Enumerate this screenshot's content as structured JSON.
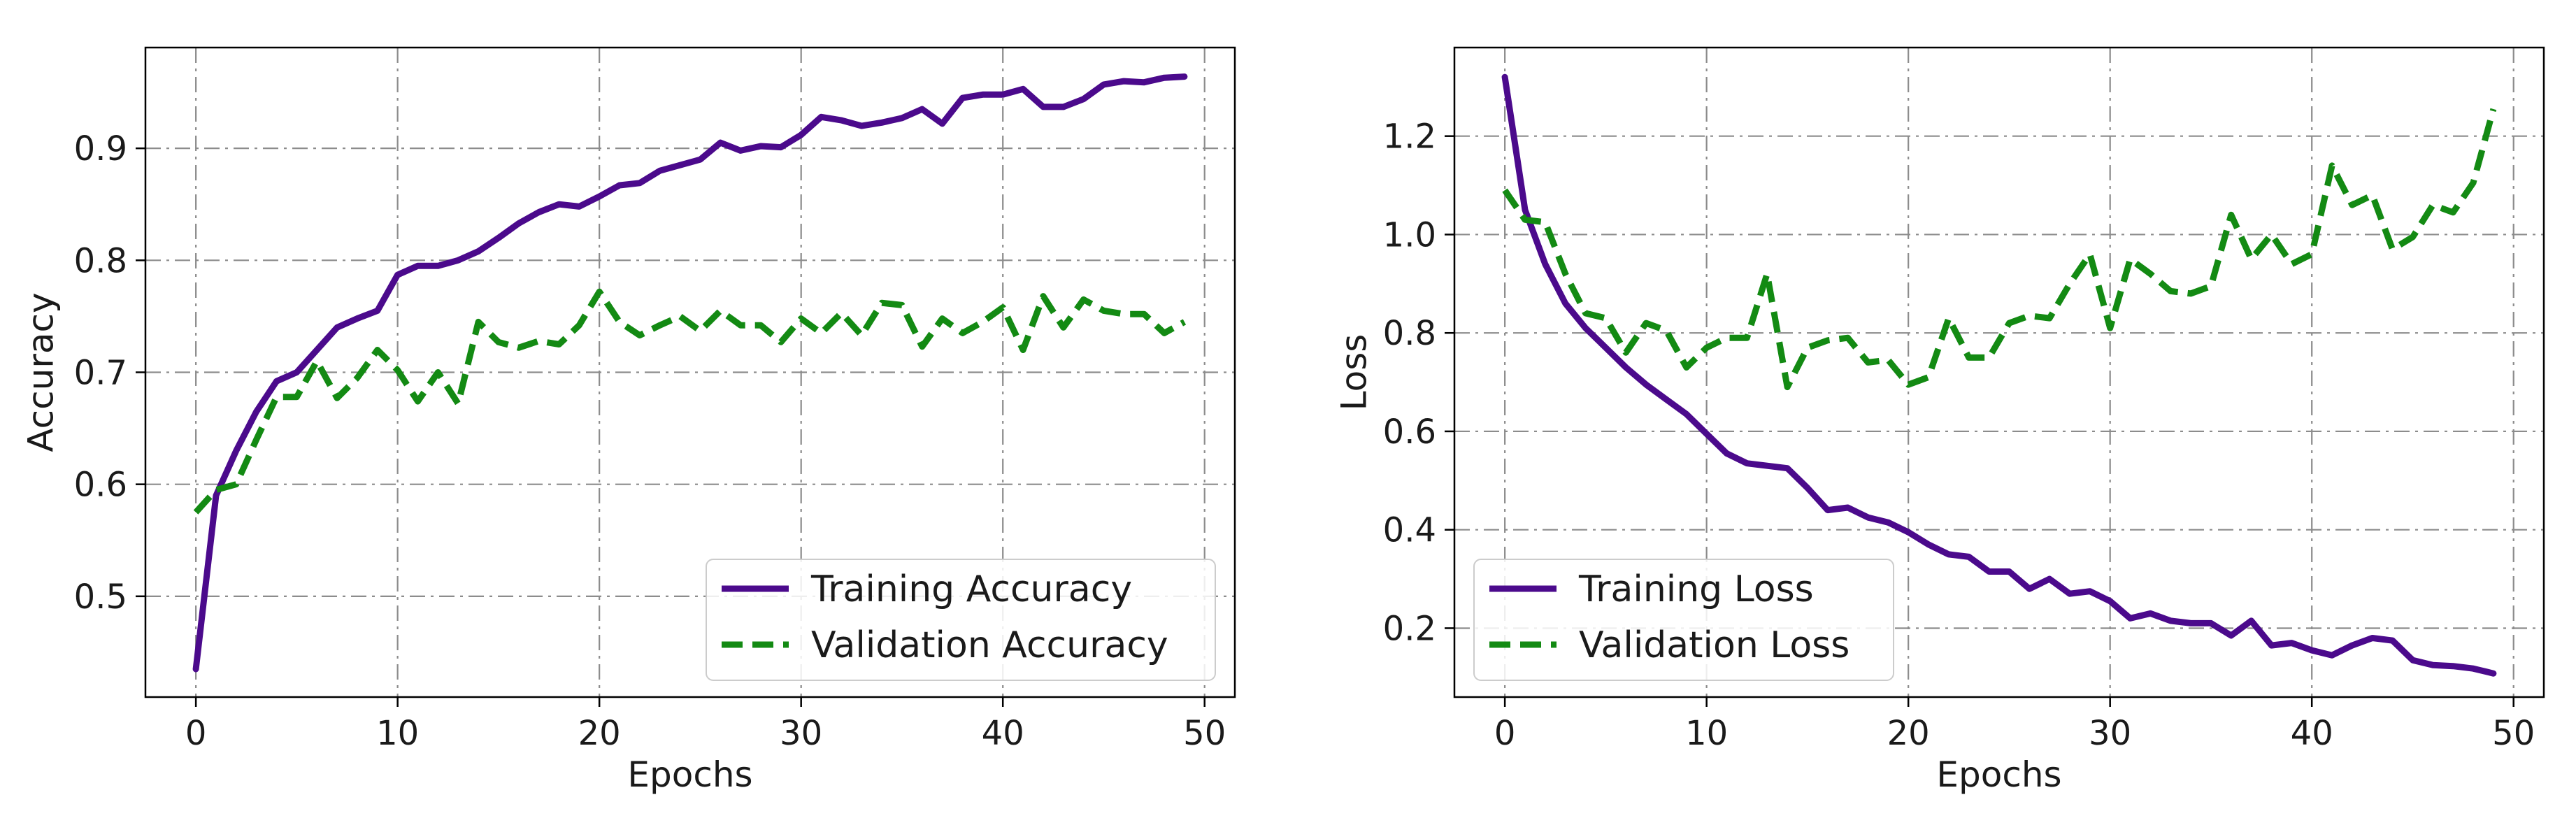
{
  "chart_data": [
    {
      "type": "line",
      "title": "",
      "xlabel": "Epochs",
      "ylabel": "Accuracy",
      "xlim": [
        -2.5,
        51.5
      ],
      "ylim": [
        0.41,
        0.99
      ],
      "xticks": [
        0,
        10,
        20,
        30,
        40,
        50
      ],
      "xtick_labels": [
        "0",
        "10",
        "20",
        "30",
        "40",
        "50"
      ],
      "yticks": [
        0.5,
        0.6,
        0.7,
        0.8,
        0.9
      ],
      "ytick_labels": [
        "0.5",
        "0.6",
        "0.7",
        "0.8",
        "0.9"
      ],
      "grid": true,
      "legend_position": "lower-right",
      "x": [
        0,
        1,
        2,
        3,
        4,
        5,
        6,
        7,
        8,
        9,
        10,
        11,
        12,
        13,
        14,
        15,
        16,
        17,
        18,
        19,
        20,
        21,
        22,
        23,
        24,
        25,
        26,
        27,
        28,
        29,
        30,
        31,
        32,
        33,
        34,
        35,
        36,
        37,
        38,
        39,
        40,
        41,
        42,
        43,
        44,
        45,
        46,
        47,
        48,
        49
      ],
      "series": [
        {
          "name": "Training Accuracy",
          "color": "#4b0a8c",
          "style": "solid",
          "values": [
            0.435,
            0.59,
            0.63,
            0.665,
            0.692,
            0.7,
            0.72,
            0.74,
            0.748,
            0.755,
            0.787,
            0.795,
            0.795,
            0.8,
            0.808,
            0.82,
            0.833,
            0.843,
            0.85,
            0.848,
            0.857,
            0.867,
            0.869,
            0.88,
            0.885,
            0.89,
            0.905,
            0.898,
            0.902,
            0.901,
            0.912,
            0.928,
            0.925,
            0.92,
            0.923,
            0.927,
            0.935,
            0.922,
            0.945,
            0.948,
            0.948,
            0.953,
            0.937,
            0.937,
            0.944,
            0.957,
            0.96,
            0.959,
            0.963,
            0.964
          ]
        },
        {
          "name": "Validation Accuracy",
          "color": "#138a13",
          "style": "dashed",
          "values": [
            0.575,
            0.595,
            0.6,
            0.64,
            0.678,
            0.678,
            0.71,
            0.677,
            0.695,
            0.72,
            0.702,
            0.674,
            0.7,
            0.672,
            0.745,
            0.727,
            0.722,
            0.728,
            0.725,
            0.742,
            0.772,
            0.745,
            0.733,
            0.742,
            0.75,
            0.737,
            0.755,
            0.742,
            0.742,
            0.727,
            0.748,
            0.735,
            0.753,
            0.733,
            0.762,
            0.76,
            0.723,
            0.748,
            0.735,
            0.745,
            0.758,
            0.72,
            0.768,
            0.74,
            0.765,
            0.755,
            0.752,
            0.752,
            0.735,
            0.745
          ]
        }
      ]
    },
    {
      "type": "line",
      "title": "",
      "xlabel": "Epochs",
      "ylabel": "Loss",
      "xlim": [
        -2.5,
        51.5
      ],
      "ylim": [
        0.06,
        1.38
      ],
      "xticks": [
        0,
        10,
        20,
        30,
        40,
        50
      ],
      "xtick_labels": [
        "0",
        "10",
        "20",
        "30",
        "40",
        "50"
      ],
      "yticks": [
        0.2,
        0.4,
        0.6,
        0.8,
        1.0,
        1.2
      ],
      "ytick_labels": [
        "0.2",
        "0.4",
        "0.6",
        "0.8",
        "1.0",
        "1.2"
      ],
      "grid": true,
      "legend_position": "lower-left",
      "x": [
        0,
        1,
        2,
        3,
        4,
        5,
        6,
        7,
        8,
        9,
        10,
        11,
        12,
        13,
        14,
        15,
        16,
        17,
        18,
        19,
        20,
        21,
        22,
        23,
        24,
        25,
        26,
        27,
        28,
        29,
        30,
        31,
        32,
        33,
        34,
        35,
        36,
        37,
        38,
        39,
        40,
        41,
        42,
        43,
        44,
        45,
        46,
        47,
        48,
        49
      ],
      "series": [
        {
          "name": "Training Loss",
          "color": "#4b0a8c",
          "style": "solid",
          "values": [
            1.32,
            1.05,
            0.94,
            0.86,
            0.81,
            0.77,
            0.73,
            0.695,
            0.665,
            0.635,
            0.595,
            0.555,
            0.535,
            0.53,
            0.525,
            0.485,
            0.44,
            0.445,
            0.425,
            0.415,
            0.395,
            0.37,
            0.35,
            0.345,
            0.315,
            0.315,
            0.28,
            0.3,
            0.27,
            0.275,
            0.255,
            0.22,
            0.23,
            0.215,
            0.21,
            0.21,
            0.185,
            0.215,
            0.165,
            0.17,
            0.155,
            0.145,
            0.165,
            0.18,
            0.175,
            0.135,
            0.125,
            0.123,
            0.118,
            0.108
          ]
        },
        {
          "name": "Validation Loss",
          "color": "#138a13",
          "style": "dashed",
          "values": [
            1.09,
            1.03,
            1.025,
            0.92,
            0.84,
            0.83,
            0.76,
            0.82,
            0.805,
            0.73,
            0.77,
            0.79,
            0.79,
            0.92,
            0.69,
            0.77,
            0.785,
            0.79,
            0.74,
            0.745,
            0.695,
            0.71,
            0.83,
            0.75,
            0.75,
            0.82,
            0.835,
            0.83,
            0.9,
            0.96,
            0.81,
            0.95,
            0.92,
            0.885,
            0.88,
            0.895,
            1.04,
            0.95,
            1.0,
            0.94,
            0.96,
            1.14,
            1.06,
            1.08,
            0.97,
            0.995,
            1.06,
            1.045,
            1.105,
            1.255
          ]
        }
      ]
    }
  ]
}
